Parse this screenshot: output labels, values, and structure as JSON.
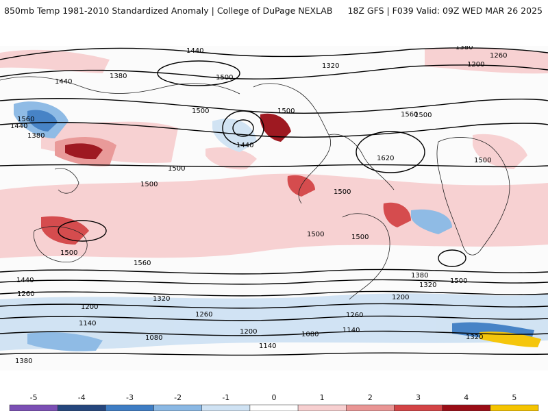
{
  "header": {
    "title": "850mb Temp 1981-2010 Standardized Anomaly | College of DuPage NEXLAB",
    "run_info": "18Z GFS | F039 Valid: 09Z WED MAR 26 2025"
  },
  "colorbar": {
    "ticks": [
      "-5",
      "-4",
      "-3",
      "-2",
      "-1",
      "0",
      "1",
      "2",
      "3",
      "4",
      "5"
    ],
    "colors": [
      "#7b4fb4",
      "#25467d",
      "#3e7dc4",
      "#8ab8e4",
      "#cfe2f3",
      "#ffffff",
      "#f7cfd0",
      "#e99594",
      "#d34345",
      "#9a0d16",
      "#f5c400"
    ]
  },
  "map": {
    "contour_labels": [
      "1440",
      "1380",
      "1320",
      "1260",
      "1200",
      "1500",
      "1560",
      "1620",
      "1440",
      "1380",
      "1500",
      "1500",
      "1500",
      "1500",
      "1500",
      "1500",
      "1440",
      "1380",
      "1320",
      "1260",
      "1200",
      "1140",
      "1080",
      "1320",
      "1260",
      "1200",
      "1140",
      "1080",
      "1140",
      "1200",
      "1260",
      "1320",
      "1380",
      "1440",
      "1560",
      "1560",
      "1380",
      "1440",
      "1500",
      "1500",
      "1500",
      "1500",
      "1500"
    ]
  }
}
